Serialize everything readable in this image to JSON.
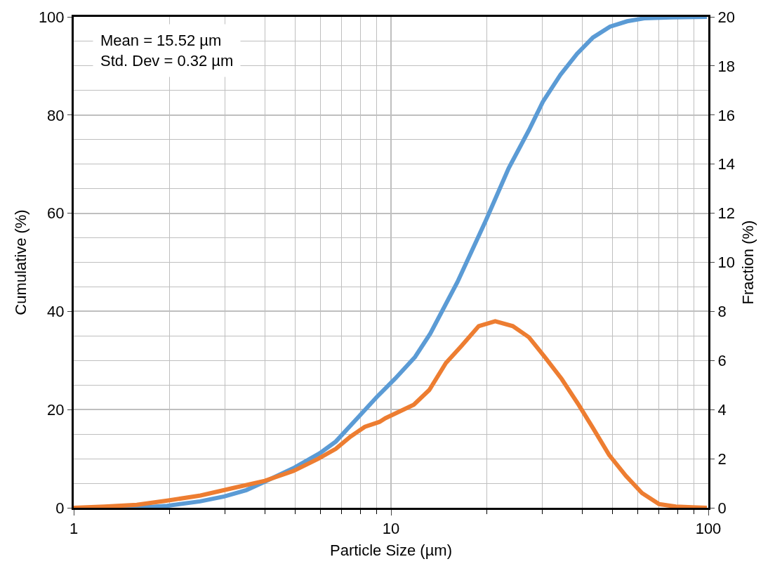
{
  "chart_data": {
    "type": "line",
    "xlabel": "Particle Size (µm)",
    "ylabel": "Cumulative (%)",
    "y2label": "Fraction (%)",
    "annotations": [
      "Mean = 15.52 µm",
      "Std. Dev = 0.32 µm"
    ],
    "log": "x",
    "grid": true,
    "marker": "none",
    "line_style": "solid",
    "xlim": [
      1,
      100
    ],
    "xticks": [
      1,
      10,
      100
    ],
    "ylim": [
      0,
      100
    ],
    "yticks": [
      0,
      20,
      40,
      60,
      80,
      100
    ],
    "y2lim": [
      0,
      20
    ],
    "y2ticks": [
      0,
      2,
      4,
      6,
      8,
      10,
      12,
      14,
      16,
      18,
      20
    ],
    "series": [
      {
        "color": "#5b9bd5",
        "x": [
          1,
          1.58,
          1.97,
          2.5,
          2.98,
          3.5,
          3.94,
          4.97,
          5.96,
          6.7,
          7.95,
          9,
          10.3,
          11.9,
          13.3,
          16.2,
          19.9,
          23.5,
          27.2,
          30.1,
          34.2,
          38.6,
          43.3,
          49,
          55.5,
          62.8,
          76.5,
          99
        ],
        "values": [
          0,
          0,
          0.4,
          1.3,
          2.3,
          3.6,
          5.1,
          8.2,
          11.1,
          13.5,
          18.7,
          22.5,
          26.3,
          30.7,
          35.5,
          46,
          58.5,
          69.2,
          76.9,
          82.7,
          88.2,
          92.5,
          95.8,
          98,
          99.1,
          99.7,
          99.9,
          100
        ]
      },
      {
        "color": "#ed7d31",
        "axis": "y2",
        "x": [
          1,
          1.25,
          1.58,
          1.99,
          2.51,
          3.17,
          4.0,
          4.93,
          5.9,
          6.7,
          7.45,
          8.27,
          9.2,
          9.6,
          11.8,
          13.2,
          14.9,
          16.7,
          18.9,
          21.3,
          24.2,
          27.2,
          30.5,
          34.5,
          39,
          43.3,
          48.7,
          55,
          61.8,
          70,
          79,
          89,
          99
        ],
        "values": [
          0,
          0.05,
          0.12,
          0.3,
          0.5,
          0.8,
          1.1,
          1.5,
          2.0,
          2.4,
          2.9,
          3.3,
          3.5,
          3.65,
          4.2,
          4.8,
          5.9,
          6.6,
          7.4,
          7.6,
          7.4,
          6.95,
          6.15,
          5.25,
          4.2,
          3.25,
          2.15,
          1.3,
          0.6,
          0.15,
          0.05,
          0.02,
          0
        ]
      }
    ]
  }
}
